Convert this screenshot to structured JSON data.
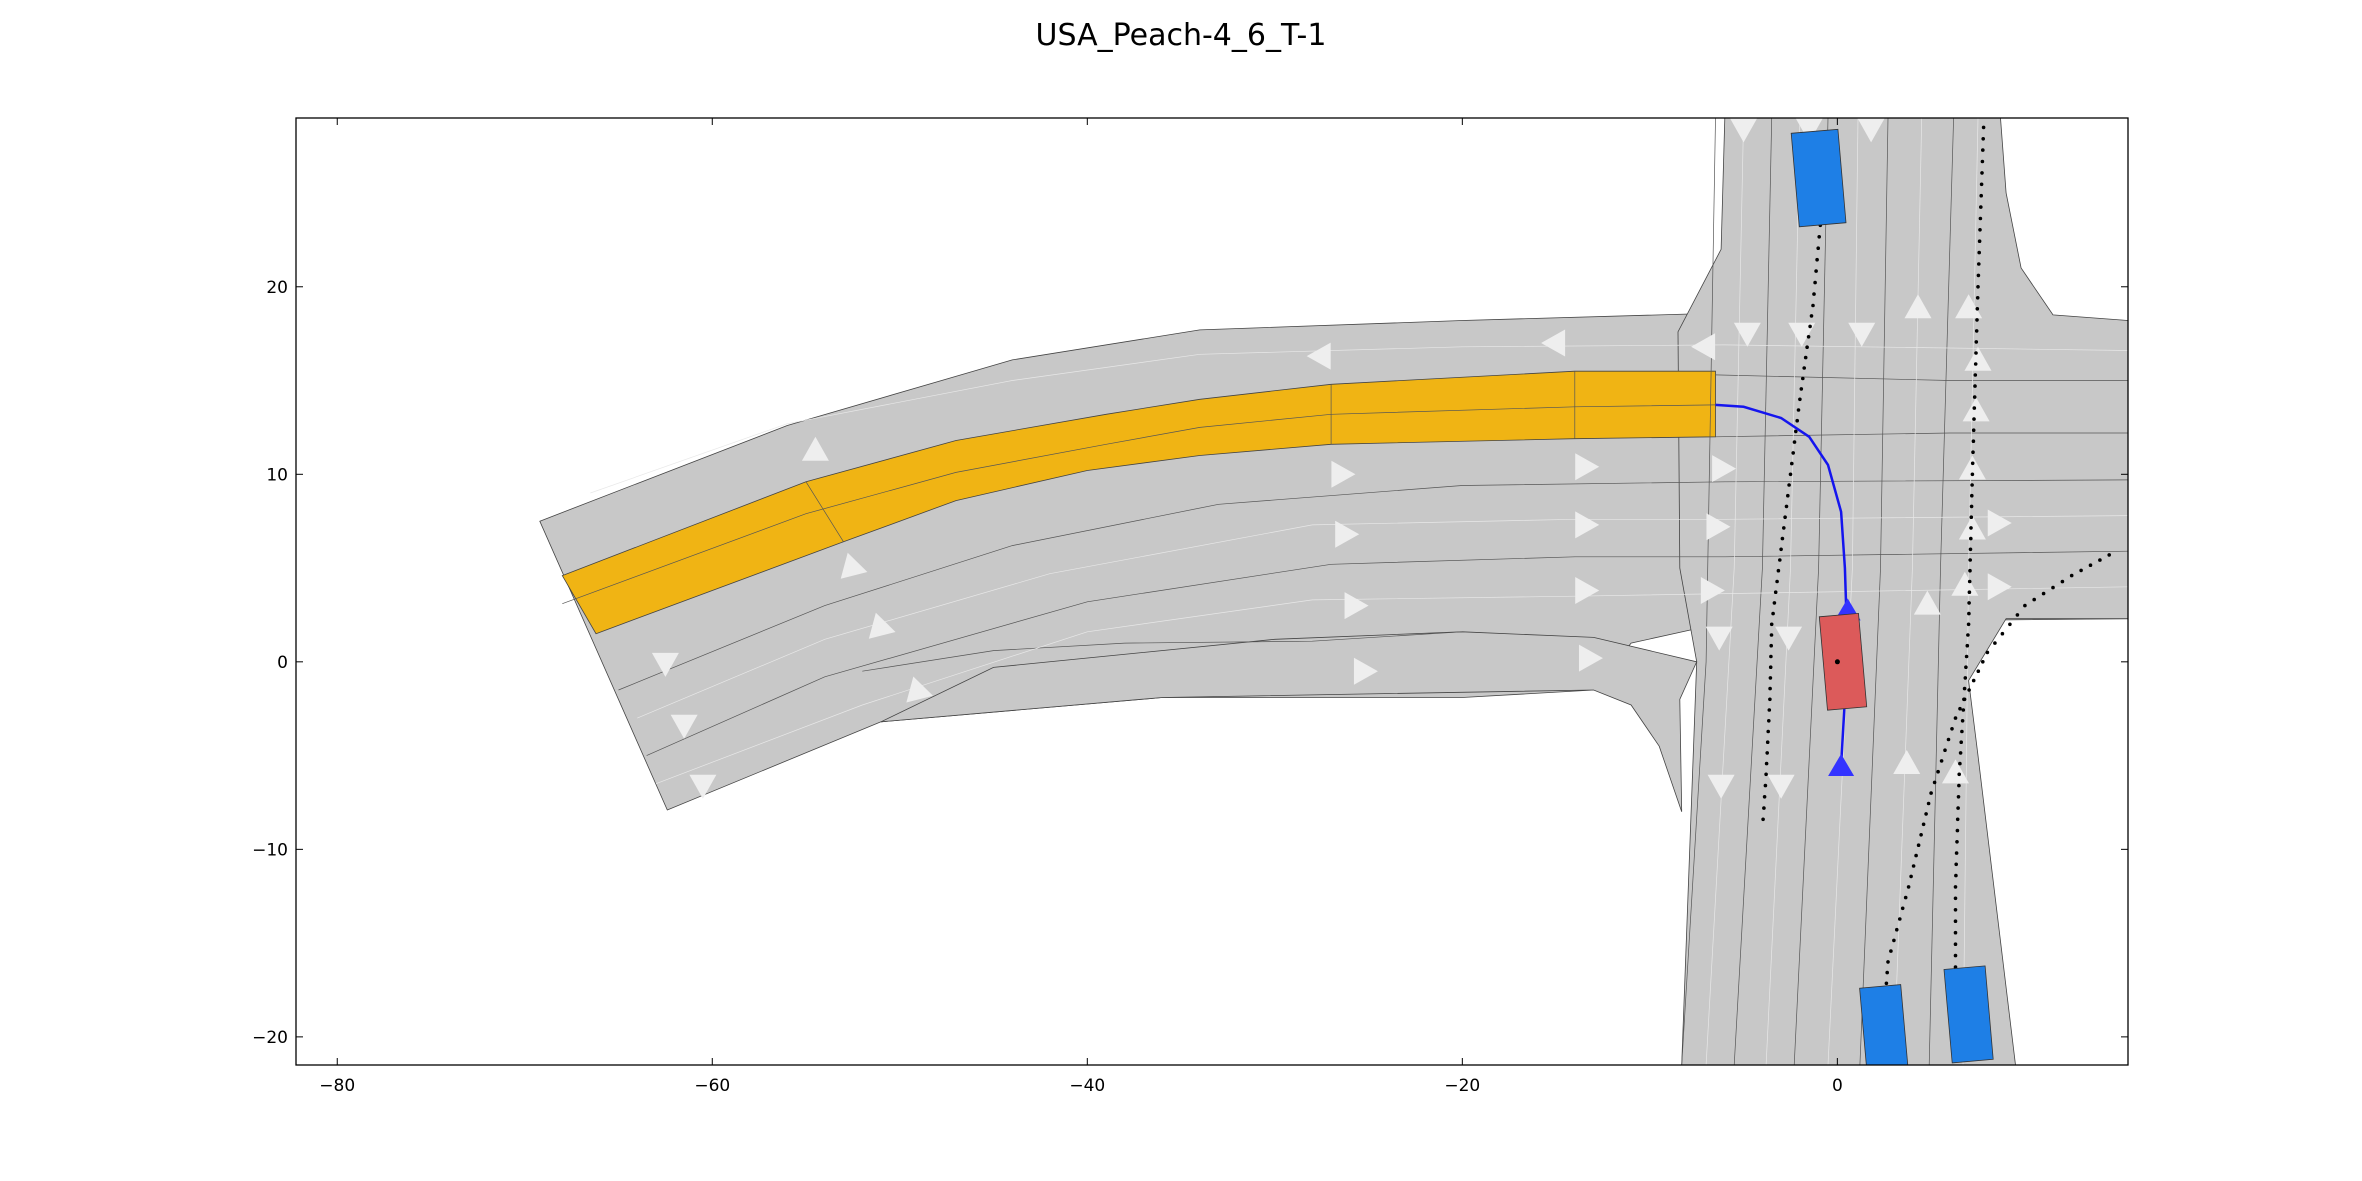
{
  "figure": {
    "title": "USA_Peach-4_6_T-1"
  },
  "axes": {
    "xlim": [
      -82.2,
      15.5
    ],
    "ylim": [
      -21.5,
      29
    ],
    "x_ticks": [
      {
        "value": -80,
        "label": "−80"
      },
      {
        "value": -60,
        "label": "−60"
      },
      {
        "value": -40,
        "label": "−40"
      },
      {
        "value": -20,
        "label": "−20"
      },
      {
        "value": 0,
        "label": "0"
      }
    ],
    "y_ticks": [
      {
        "value": 20,
        "label": "20"
      },
      {
        "value": 10,
        "label": "10"
      },
      {
        "value": 0,
        "label": "0"
      },
      {
        "value": -10,
        "label": "−10"
      },
      {
        "value": -20,
        "label": "−20"
      }
    ]
  },
  "colors": {
    "road": "#c8c8c8",
    "road_edge": "#444444",
    "lane_mark": "#e8e8e8",
    "arrow": "#eeeeee",
    "goal_lanelet": "#f0b414",
    "ego_vehicle": "#dc5a5a",
    "other_vehicle": "#1e7fe6",
    "trajectory": "#1515ee",
    "dots": "#000000"
  },
  "scenario": {
    "ego_vehicle": {
      "label": "ego-vehicle",
      "center": [
        0.3,
        0.0
      ],
      "length": 5.0,
      "width": 2.1,
      "heading_deg": 95
    },
    "obstacles": [
      {
        "id": "obstacle-north",
        "center": [
          -1.0,
          25.8
        ],
        "length": 5.0,
        "width": 2.5,
        "heading_deg": 95
      },
      {
        "id": "obstacle-south-east",
        "center": [
          7.0,
          -18.8
        ],
        "length": 5.0,
        "width": 2.2,
        "heading_deg": 95
      },
      {
        "id": "obstacle-south",
        "center": [
          2.5,
          -19.8
        ],
        "length": 5.0,
        "width": 2.2,
        "heading_deg": 95
      }
    ],
    "planned_route": [
      [
        -6.5,
        13.7
      ],
      [
        -5.0,
        13.6
      ],
      [
        -3.0,
        13.0
      ],
      [
        -1.5,
        12.0
      ],
      [
        -0.5,
        10.5
      ],
      [
        0.2,
        8.0
      ],
      [
        0.4,
        5.0
      ],
      [
        0.5,
        2.0
      ],
      [
        0.4,
        -2.0
      ],
      [
        0.2,
        -5.5
      ]
    ]
  }
}
